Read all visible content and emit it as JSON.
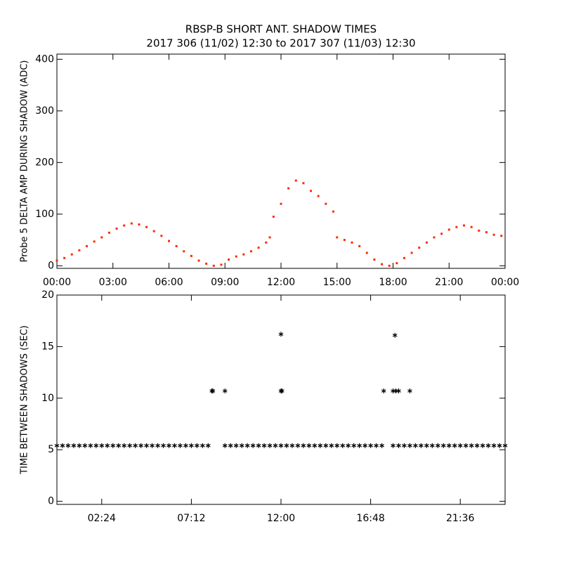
{
  "chart_data": [
    {
      "type": "scatter",
      "title": "RBSP-B SHORT ANT. SHADOW TIMES",
      "subtitle": "2017 306 (11/02) 12:30 to 2017 307 (11/03) 12:30",
      "y_label": "Probe 5 DELTA AMP DURING SHADOW (ADC)",
      "marker": "dot",
      "xlim": [
        0,
        24
      ],
      "ylim": [
        -5,
        410
      ],
      "xticks": [
        {
          "value": 0,
          "label": "00:00"
        },
        {
          "value": 3,
          "label": "03:00"
        },
        {
          "value": 6,
          "label": "06:00"
        },
        {
          "value": 9,
          "label": "09:00"
        },
        {
          "value": 12,
          "label": "12:00"
        },
        {
          "value": 15,
          "label": "15:00"
        },
        {
          "value": 18,
          "label": "18:00"
        },
        {
          "value": 21,
          "label": "21:00"
        },
        {
          "value": 24,
          "label": "00:00"
        }
      ],
      "yticks": [
        0,
        100,
        200,
        300,
        400
      ],
      "series": [
        {
          "color": "#ff2a00",
          "x": [
            0,
            0.4,
            0.8,
            1.2,
            1.6,
            2.0,
            2.4,
            2.8,
            3.2,
            3.6,
            4.0,
            4.4,
            4.8,
            5.2,
            5.6,
            6.0,
            6.4,
            6.8,
            7.2,
            7.6,
            8.0,
            8.4,
            8.8,
            9.2,
            9.6,
            10.0,
            10.4,
            10.8,
            11.2,
            11.4,
            11.6,
            12.0,
            12.4,
            12.8,
            13.2,
            13.6,
            14.0,
            14.4,
            14.8,
            15.0,
            15.4,
            15.8,
            16.2,
            16.6,
            17.0,
            17.4,
            17.8,
            18.2,
            18.6,
            19.0,
            19.4,
            19.8,
            20.2,
            20.6,
            21.0,
            21.4,
            21.8,
            22.2,
            22.6,
            23.0,
            23.4,
            23.8
          ],
          "values": [
            10,
            15,
            22,
            30,
            38,
            47,
            55,
            64,
            72,
            78,
            82,
            80,
            75,
            67,
            58,
            48,
            38,
            28,
            19,
            10,
            4,
            0,
            2,
            12,
            18,
            22,
            28,
            35,
            45,
            55,
            95,
            120,
            150,
            165,
            160,
            145,
            135,
            120,
            105,
            55,
            50,
            45,
            38,
            25,
            12,
            3,
            0,
            5,
            15,
            25,
            35,
            45,
            55,
            62,
            70,
            75,
            78,
            75,
            68,
            65,
            60,
            58
          ]
        }
      ]
    },
    {
      "type": "scatter",
      "y_label": "TIME BETWEEN SHADOWS (SEC)",
      "marker": "asterisk",
      "xlim": [
        0,
        24
      ],
      "ylim": [
        -0.3,
        20
      ],
      "xticks": [
        {
          "value": 2.4,
          "label": "02:24"
        },
        {
          "value": 7.2,
          "label": "07:12"
        },
        {
          "value": 12,
          "label": "12:00"
        },
        {
          "value": 16.8,
          "label": "16:48"
        },
        {
          "value": 21.6,
          "label": "21:36"
        }
      ],
      "yticks": [
        0,
        5,
        10,
        15,
        20
      ],
      "series": [
        {
          "color": "#000000",
          "x": [
            0,
            0.3,
            0.6,
            0.9,
            1.2,
            1.5,
            1.8,
            2.1,
            2.4,
            2.7,
            3,
            3.3,
            3.6,
            3.9,
            4.2,
            4.5,
            4.8,
            5.1,
            5.4,
            5.7,
            6,
            6.3,
            6.6,
            6.9,
            7.2,
            7.5,
            7.8,
            8.1,
            9,
            9.3,
            9.6,
            9.9,
            10.2,
            10.5,
            10.8,
            11.1,
            11.4,
            11.7,
            12,
            12.3,
            12.6,
            12.9,
            13.2,
            13.5,
            13.8,
            14.1,
            14.4,
            14.7,
            15,
            15.3,
            15.6,
            15.9,
            16.2,
            16.5,
            16.8,
            17.1,
            17.4,
            18,
            18.3,
            18.6,
            18.9,
            19.2,
            19.5,
            19.8,
            20.1,
            20.4,
            20.7,
            21,
            21.3,
            21.6,
            21.9,
            22.2,
            22.5,
            22.8,
            23.1,
            23.4,
            23.7,
            24
          ],
          "values": [
            5.4,
            5.4,
            5.4,
            5.4,
            5.4,
            5.4,
            5.4,
            5.4,
            5.4,
            5.4,
            5.4,
            5.4,
            5.4,
            5.4,
            5.4,
            5.4,
            5.4,
            5.4,
            5.4,
            5.4,
            5.4,
            5.4,
            5.4,
            5.4,
            5.4,
            5.4,
            5.4,
            5.4,
            5.4,
            5.4,
            5.4,
            5.4,
            5.4,
            5.4,
            5.4,
            5.4,
            5.4,
            5.4,
            5.4,
            5.4,
            5.4,
            5.4,
            5.4,
            5.4,
            5.4,
            5.4,
            5.4,
            5.4,
            5.4,
            5.4,
            5.4,
            5.4,
            5.4,
            5.4,
            5.4,
            5.4,
            5.4,
            5.4,
            5.4,
            5.4,
            5.4,
            5.4,
            5.4,
            5.4,
            5.4,
            5.4,
            5.4,
            5.4,
            5.4,
            5.4,
            5.4,
            5.4,
            5.4,
            5.4,
            5.4,
            5.4,
            5.4,
            5.4
          ]
        },
        {
          "color": "#000000",
          "x": [
            8.3,
            8.35,
            9.0,
            12.0,
            12.05,
            12.0,
            17.5,
            18.0,
            18.1,
            18.15,
            18.3,
            18.9
          ],
          "values": [
            10.7,
            10.7,
            10.7,
            10.7,
            10.7,
            16.2,
            10.7,
            10.7,
            16.1,
            10.7,
            10.7,
            10.7
          ]
        }
      ]
    }
  ]
}
